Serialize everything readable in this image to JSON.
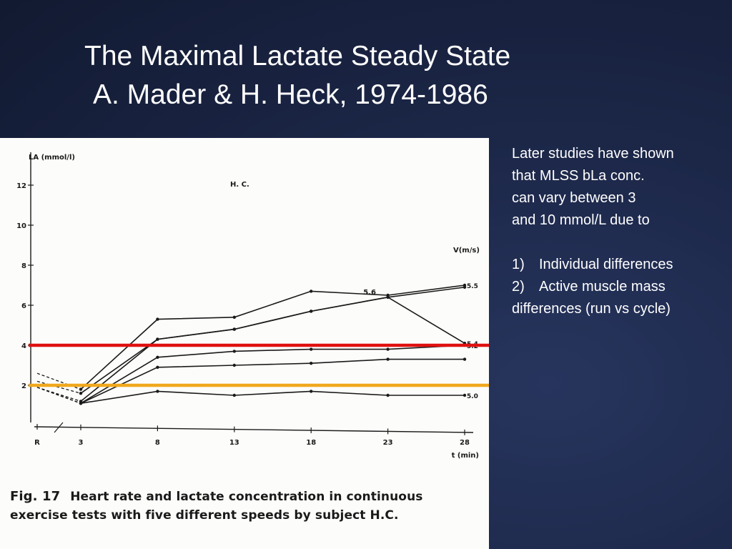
{
  "slide": {
    "title_line1": "The Maximal Lactate Steady State",
    "title_line2": "A. Mader & H. Heck, 1974-1986"
  },
  "notes": {
    "lines": [
      "Later studies have shown",
      "that MLSS bLa conc.",
      "can vary between 3",
      "and 10 mmol/L due to"
    ],
    "list": [
      {
        "num": "1)",
        "text": "Individual differences"
      },
      {
        "num": "2)",
        "text": "Active muscle mass"
      }
    ],
    "tail": "differences  (run vs cycle)"
  },
  "caption": {
    "fig": "Fig. 17",
    "text": "Heart rate and lactate concentration in continuous exercise tests with five different speeds by subject H.C."
  },
  "colors": {
    "ref_line_4": "#e01010",
    "ref_line_2": "#f0a81c",
    "ink": "#1a1a1a"
  },
  "chart_data": {
    "type": "line",
    "ylabel": "LA (mmol/l)",
    "xlabel": "t (min)",
    "subject": "H. C.",
    "legend_title": "V(m/s)",
    "ylim": [
      0,
      13
    ],
    "yticks": [
      "2",
      "4",
      "6",
      "8",
      "10",
      "12"
    ],
    "xticks": [
      "R",
      "3",
      "8",
      "13",
      "18",
      "23",
      "28"
    ],
    "x": [
      3,
      8,
      13,
      18,
      23,
      28
    ],
    "series": [
      {
        "name": "5.5",
        "values": [
          1.8,
          5.3,
          5.4,
          6.7,
          6.5,
          7.0
        ],
        "label_pos": 28,
        "extra_label": "5.6"
      },
      {
        "name": "",
        "values": [
          1.6,
          4.3,
          4.8,
          5.7,
          6.4,
          6.9
        ]
      },
      {
        "name": "5.4",
        "values": [
          1.2,
          4.3,
          4.8,
          5.7,
          6.4,
          4.1
        ]
      },
      {
        "name": "5.2",
        "values": [
          1.1,
          3.4,
          3.7,
          3.8,
          3.8,
          4.0
        ]
      },
      {
        "name": "",
        "values": [
          1.1,
          2.9,
          3.0,
          3.1,
          3.3,
          3.3
        ]
      },
      {
        "name": "5.0",
        "values": [
          1.1,
          1.7,
          1.5,
          1.7,
          1.5,
          1.5
        ]
      }
    ],
    "rest_values": [
      2.6,
      2.2,
      1.9
    ],
    "reference_lines": [
      4,
      2
    ]
  }
}
